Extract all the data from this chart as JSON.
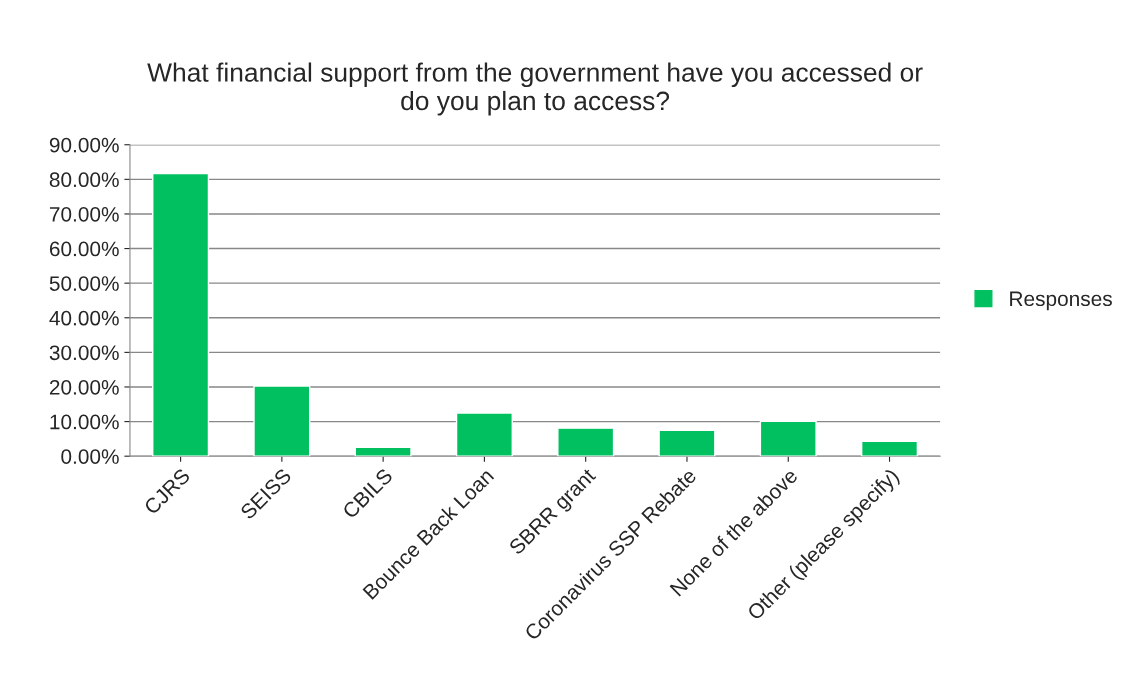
{
  "chart_data": {
    "type": "bar",
    "title": "What financial support from the government have you accessed or\ndo you plan to access?",
    "categories": [
      "CJRS",
      "SEISS",
      "CBILS",
      "Bounce Back Loan",
      "SBRR grant",
      "Coronavirus SSP Rebate",
      "None of the above",
      "Other (please specify)"
    ],
    "series": [
      {
        "name": "Responses",
        "color": "#00c060",
        "values": [
          81.7,
          20.3,
          2.6,
          12.5,
          8.1,
          7.5,
          10.1,
          4.3
        ]
      }
    ],
    "ylim": [
      0,
      90
    ],
    "yticks": [
      {
        "value": 0,
        "label": "0.00%"
      },
      {
        "value": 10,
        "label": "10.00%"
      },
      {
        "value": 20,
        "label": "20.00%"
      },
      {
        "value": 30,
        "label": "30.00%"
      },
      {
        "value": 40,
        "label": "40.00%"
      },
      {
        "value": 50,
        "label": "50.00%"
      },
      {
        "value": 60,
        "label": "60.00%"
      },
      {
        "value": 70,
        "label": "70.00%"
      },
      {
        "value": 80,
        "label": "80.00%"
      },
      {
        "value": 90,
        "label": "90.00%"
      }
    ],
    "grid": "y",
    "legend": "right"
  }
}
